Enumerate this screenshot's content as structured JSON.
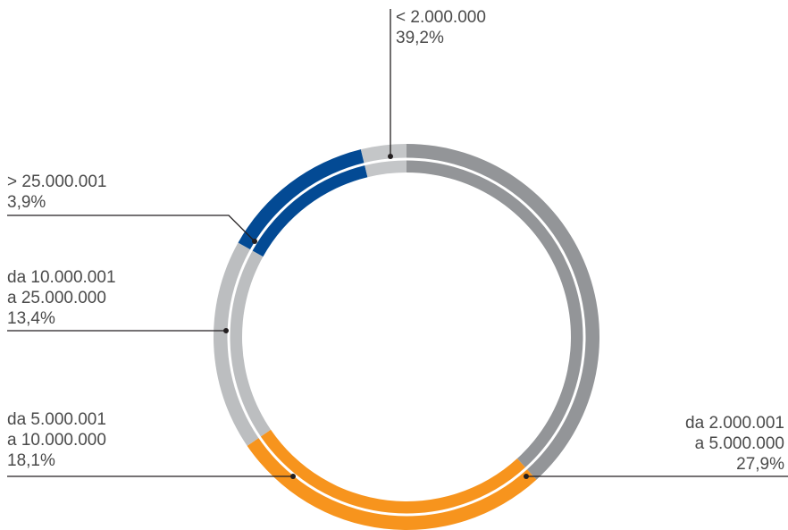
{
  "chart_data": {
    "type": "pie",
    "variant": "ring",
    "slices": [
      {
        "label_lines": [
          "< 2.000.000"
        ],
        "value_label": "39,2%",
        "value": 39.2,
        "color": "#939598"
      },
      {
        "label_lines": [
          "da 2.000.001",
          "a 5.000.000"
        ],
        "value_label": "27,9%",
        "value": 27.9,
        "color": "#f7941d"
      },
      {
        "label_lines": [
          "da 5.000.001",
          "a 10.000.000"
        ],
        "value_label": "18,1%",
        "value": 18.1,
        "color": "#bcbec0"
      },
      {
        "label_lines": [
          "da 10.000.001",
          "a 25.000.000"
        ],
        "value_label": "13,4%",
        "value": 13.4,
        "color": "#034a94"
      },
      {
        "label_lines": [
          "> 25.000.001"
        ],
        "value_label": "3,9%",
        "value": 3.9,
        "color": "#c4c6c8"
      }
    ],
    "start": "top",
    "direction": "clockwise",
    "legend": "none",
    "leader_line_color": "#231f20"
  }
}
